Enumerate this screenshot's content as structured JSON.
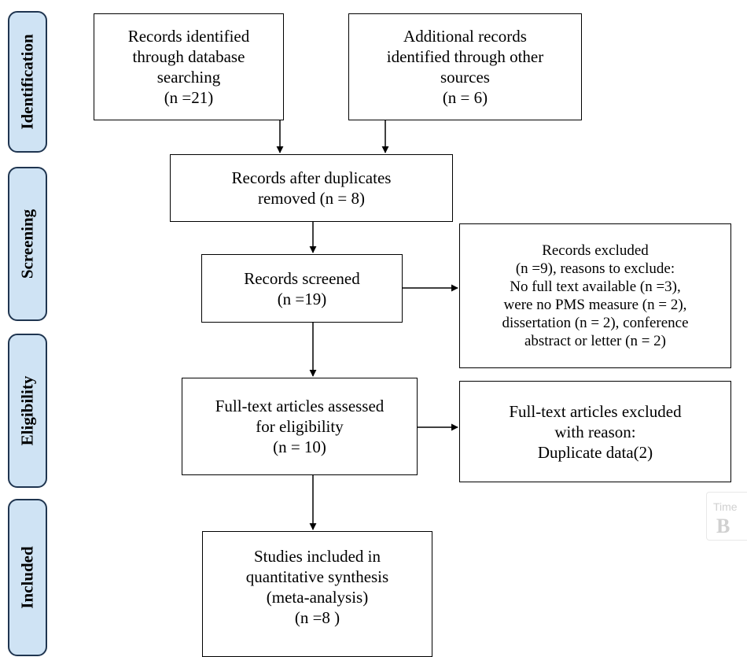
{
  "phases": {
    "identification": "Identification",
    "screening": "Screening",
    "eligibility": "Eligibility",
    "included": "Included"
  },
  "boxes": {
    "records_identified": "Records identified\nthrough database\nsearching\n(n =21)",
    "additional_records": "Additional records\nidentified through other\nsources\n(n = 6)",
    "after_duplicates": "Records after duplicates\nremoved (n = 8)",
    "records_screened": "Records screened\n(n =19)",
    "records_excluded": "Records excluded\n(n =9), reasons to exclude:\nNo full text available (n =3),\nwere no PMS measure (n = 2),\ndissertation (n = 2), conference\nabstract or letter (n = 2)",
    "fulltext_assessed": "Full-text articles assessed\nfor eligibility\n(n = 10)",
    "fulltext_excluded": "Full-text articles excluded\nwith reason:\nDuplicate data(2)",
    "studies_included": "Studies included in\nquantitative synthesis\n(meta-analysis)\n(n =8    )"
  },
  "overlay": {
    "label": "Time",
    "letter": "B"
  }
}
